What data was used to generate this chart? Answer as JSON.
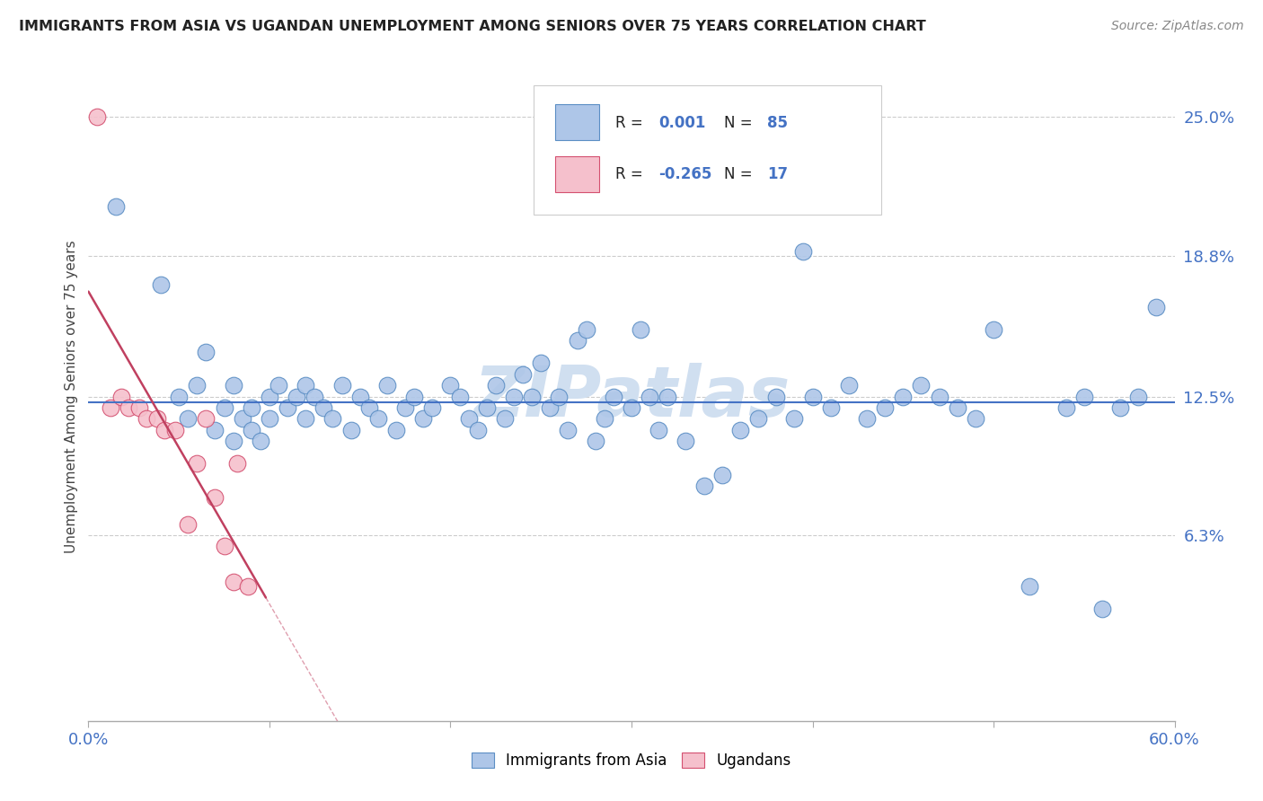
{
  "title": "IMMIGRANTS FROM ASIA VS UGANDAN UNEMPLOYMENT AMONG SENIORS OVER 75 YEARS CORRELATION CHART",
  "source": "Source: ZipAtlas.com",
  "ylabel": "Unemployment Among Seniors over 75 years",
  "xlim": [
    0.0,
    0.6
  ],
  "ylim": [
    -0.02,
    0.27
  ],
  "yticks": [
    0.063,
    0.125,
    0.188,
    0.25
  ],
  "ytick_labels": [
    "6.3%",
    "12.5%",
    "18.8%",
    "25.0%"
  ],
  "xticks": [
    0.0,
    0.1,
    0.2,
    0.3,
    0.4,
    0.5,
    0.6
  ],
  "xtick_labels": [
    "0.0%",
    "",
    "",
    "",
    "",
    "",
    "60.0%"
  ],
  "blue_R": 0.001,
  "blue_N": 85,
  "pink_R": -0.265,
  "pink_N": 17,
  "blue_color": "#aec6e8",
  "pink_color": "#f5c0cc",
  "blue_line_color": "#5b8ec4",
  "pink_line_color": "#d45070",
  "blue_reg_color": "#4472c4",
  "pink_reg_color": "#c04060",
  "watermark": "ZIPatlas",
  "watermark_color": "#d0dff0",
  "legend_label_blue": "Immigrants from Asia",
  "legend_label_pink": "Ugandans",
  "blue_scatter_x": [
    0.015,
    0.04,
    0.05,
    0.055,
    0.06,
    0.065,
    0.07,
    0.075,
    0.08,
    0.08,
    0.085,
    0.09,
    0.09,
    0.095,
    0.1,
    0.1,
    0.105,
    0.11,
    0.115,
    0.12,
    0.12,
    0.125,
    0.13,
    0.135,
    0.14,
    0.145,
    0.15,
    0.155,
    0.16,
    0.165,
    0.17,
    0.175,
    0.18,
    0.185,
    0.19,
    0.2,
    0.205,
    0.21,
    0.215,
    0.22,
    0.225,
    0.23,
    0.235,
    0.24,
    0.245,
    0.25,
    0.255,
    0.26,
    0.265,
    0.27,
    0.28,
    0.285,
    0.29,
    0.3,
    0.305,
    0.31,
    0.315,
    0.32,
    0.33,
    0.34,
    0.35,
    0.36,
    0.37,
    0.38,
    0.39,
    0.4,
    0.41,
    0.42,
    0.43,
    0.44,
    0.45,
    0.46,
    0.47,
    0.48,
    0.49,
    0.5,
    0.52,
    0.54,
    0.55,
    0.56,
    0.57,
    0.58,
    0.59,
    0.395,
    0.275
  ],
  "blue_scatter_y": [
    0.21,
    0.175,
    0.125,
    0.115,
    0.13,
    0.145,
    0.11,
    0.12,
    0.13,
    0.105,
    0.115,
    0.11,
    0.12,
    0.105,
    0.125,
    0.115,
    0.13,
    0.12,
    0.125,
    0.13,
    0.115,
    0.125,
    0.12,
    0.115,
    0.13,
    0.11,
    0.125,
    0.12,
    0.115,
    0.13,
    0.11,
    0.12,
    0.125,
    0.115,
    0.12,
    0.13,
    0.125,
    0.115,
    0.11,
    0.12,
    0.13,
    0.115,
    0.125,
    0.135,
    0.125,
    0.14,
    0.12,
    0.125,
    0.11,
    0.15,
    0.105,
    0.115,
    0.125,
    0.12,
    0.155,
    0.125,
    0.11,
    0.125,
    0.105,
    0.085,
    0.09,
    0.11,
    0.115,
    0.125,
    0.115,
    0.125,
    0.12,
    0.13,
    0.115,
    0.12,
    0.125,
    0.13,
    0.125,
    0.12,
    0.115,
    0.155,
    0.04,
    0.12,
    0.125,
    0.03,
    0.12,
    0.125,
    0.165,
    0.19,
    0.155
  ],
  "pink_scatter_x": [
    0.005,
    0.012,
    0.018,
    0.022,
    0.028,
    0.032,
    0.038,
    0.042,
    0.048,
    0.055,
    0.06,
    0.065,
    0.07,
    0.075,
    0.08,
    0.082,
    0.088
  ],
  "pink_scatter_y": [
    0.25,
    0.12,
    0.125,
    0.12,
    0.12,
    0.115,
    0.115,
    0.11,
    0.11,
    0.068,
    0.095,
    0.115,
    0.08,
    0.058,
    0.042,
    0.095,
    0.04
  ]
}
